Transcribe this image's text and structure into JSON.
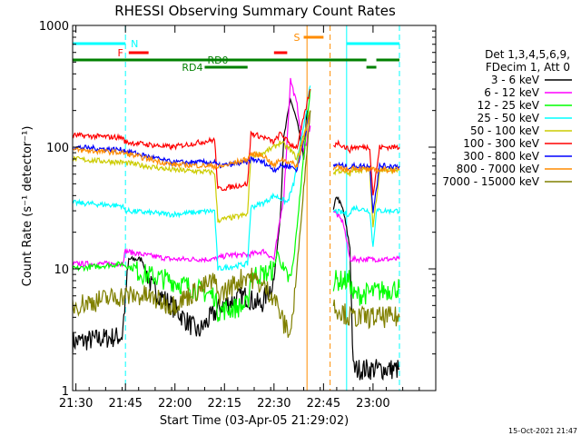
{
  "chart_data": {
    "type": "line",
    "title": "RHESSI Observing Summary Count Rates",
    "xlabel": "Start Time (03-Apr-05 21:29:02)",
    "ylabel": "Count Rate (s⁻¹ detector⁻¹)",
    "yscale": "log",
    "xlim": [
      0,
      110
    ],
    "ylim": [
      1,
      1000
    ],
    "x_ticks": [
      {
        "t": 1,
        "label": "21:30"
      },
      {
        "t": 16,
        "label": "21:45"
      },
      {
        "t": 31,
        "label": "22:00"
      },
      {
        "t": 46,
        "label": "22:15"
      },
      {
        "t": 61,
        "label": "22:30"
      },
      {
        "t": 76,
        "label": "22:45"
      },
      {
        "t": 91,
        "label": "23:00"
      }
    ],
    "y_ticks": [
      {
        "v": 1,
        "label": "1"
      },
      {
        "v": 10,
        "label": "10"
      },
      {
        "v": 100,
        "label": "100"
      },
      {
        "v": 1000,
        "label": "1000"
      }
    ],
    "legend_header": [
      "Det 1,3,4,5,6,9,",
      "FDecim 1, Att 0"
    ],
    "legend_position": "right",
    "timestamp": "15-Oct-2021 21:47",
    "series": [
      {
        "name": "3 - 6 keV",
        "color": "#000000",
        "points": [
          [
            0,
            2.5
          ],
          [
            15,
            2.8
          ],
          [
            17,
            12
          ],
          [
            21,
            12
          ],
          [
            24,
            7
          ],
          [
            30,
            5
          ],
          [
            38,
            3
          ],
          [
            45,
            5
          ],
          [
            52,
            6
          ],
          [
            57,
            5
          ],
          [
            61,
            8
          ],
          [
            63,
            30
          ],
          [
            64,
            120
          ],
          [
            66,
            250
          ],
          [
            68,
            160
          ],
          [
            70,
            80
          ],
          [
            71,
            200
          ],
          [
            74,
            null
          ],
          [
            79,
            30
          ],
          [
            80,
            40
          ],
          [
            82,
            30
          ],
          [
            84,
            15
          ],
          [
            85,
            1.5
          ],
          [
            87,
            1.5
          ],
          [
            92,
            1.5
          ],
          [
            95,
            1.5
          ],
          [
            99,
            1.5
          ]
        ]
      },
      {
        "name": "6 - 12 keV",
        "color": "#ff00ff",
        "points": [
          [
            0,
            11
          ],
          [
            15,
            11
          ],
          [
            16,
            14
          ],
          [
            22,
            13
          ],
          [
            30,
            12
          ],
          [
            43,
            12
          ],
          [
            47,
            13
          ],
          [
            53,
            13
          ],
          [
            58,
            14
          ],
          [
            61,
            12
          ],
          [
            64,
            40
          ],
          [
            66,
            360
          ],
          [
            68,
            220
          ],
          [
            70,
            90
          ],
          [
            72,
            150
          ],
          [
            74,
            null
          ],
          [
            79,
            30
          ],
          [
            80,
            28
          ],
          [
            82,
            24
          ],
          [
            84,
            12
          ],
          [
            99,
            12
          ]
        ]
      },
      {
        "name": "12 - 25 keV",
        "color": "#00ff00",
        "points": [
          [
            0,
            10
          ],
          [
            15,
            11
          ],
          [
            22,
            9
          ],
          [
            30,
            8
          ],
          [
            43,
            6
          ],
          [
            44,
            4.5
          ],
          [
            53,
            5
          ],
          [
            54,
            9
          ],
          [
            58,
            9
          ],
          [
            61,
            10
          ],
          [
            62,
            14
          ],
          [
            64,
            9
          ],
          [
            66,
            8
          ],
          [
            67,
            12
          ],
          [
            72,
            300
          ],
          [
            74,
            null
          ],
          [
            79,
            8
          ],
          [
            84,
            8
          ],
          [
            85,
            6
          ],
          [
            99,
            7
          ]
        ]
      },
      {
        "name": "25 - 50 keV",
        "color": "#00ffff",
        "points": [
          [
            0,
            35
          ],
          [
            15,
            33
          ],
          [
            16,
            30
          ],
          [
            30,
            28
          ],
          [
            43,
            30
          ],
          [
            44,
            10
          ],
          [
            53,
            11
          ],
          [
            54,
            32
          ],
          [
            58,
            35
          ],
          [
            61,
            40
          ],
          [
            63,
            38
          ],
          [
            65,
            35
          ],
          [
            67,
            50
          ],
          [
            72,
            320
          ],
          [
            74,
            null
          ],
          [
            79,
            30
          ],
          [
            84,
            28
          ],
          [
            85,
            32
          ],
          [
            90,
            30
          ],
          [
            91,
            15
          ],
          [
            92,
            30
          ],
          [
            99,
            30
          ]
        ]
      },
      {
        "name": "50 - 100 keV",
        "color": "#cccc00",
        "points": [
          [
            0,
            80
          ],
          [
            15,
            75
          ],
          [
            30,
            65
          ],
          [
            43,
            62
          ],
          [
            44,
            25
          ],
          [
            53,
            28
          ],
          [
            54,
            85
          ],
          [
            58,
            90
          ],
          [
            61,
            100
          ],
          [
            63,
            110
          ],
          [
            66,
            95
          ],
          [
            68,
            80
          ],
          [
            72,
            200
          ],
          [
            74,
            null
          ],
          [
            79,
            60
          ],
          [
            80,
            65
          ],
          [
            84,
            60
          ],
          [
            85,
            65
          ],
          [
            90,
            65
          ],
          [
            91,
            22
          ],
          [
            93,
            65
          ],
          [
            99,
            65
          ]
        ]
      },
      {
        "name": "100 - 300 keV",
        "color": "#ff0000",
        "points": [
          [
            0,
            125
          ],
          [
            15,
            120
          ],
          [
            16,
            110
          ],
          [
            30,
            100
          ],
          [
            43,
            115
          ],
          [
            44,
            45
          ],
          [
            53,
            50
          ],
          [
            54,
            130
          ],
          [
            58,
            120
          ],
          [
            61,
            110
          ],
          [
            63,
            130
          ],
          [
            66,
            105
          ],
          [
            68,
            100
          ],
          [
            72,
            300
          ],
          [
            74,
            null
          ],
          [
            79,
            100
          ],
          [
            80,
            110
          ],
          [
            84,
            95
          ],
          [
            85,
            100
          ],
          [
            90,
            100
          ],
          [
            91,
            40
          ],
          [
            93,
            100
          ],
          [
            99,
            100
          ]
        ]
      },
      {
        "name": "300 - 800 keV",
        "color": "#0000ff",
        "points": [
          [
            0,
            100
          ],
          [
            15,
            95
          ],
          [
            30,
            75
          ],
          [
            43,
            75
          ],
          [
            44,
            70
          ],
          [
            53,
            75
          ],
          [
            54,
            80
          ],
          [
            58,
            75
          ],
          [
            61,
            65
          ],
          [
            63,
            70
          ],
          [
            66,
            70
          ],
          [
            68,
            65
          ],
          [
            72,
            200
          ],
          [
            74,
            null
          ],
          [
            79,
            70
          ],
          [
            80,
            72
          ],
          [
            84,
            68
          ],
          [
            85,
            70
          ],
          [
            90,
            70
          ],
          [
            91,
            30
          ],
          [
            93,
            70
          ],
          [
            99,
            70
          ]
        ]
      },
      {
        "name": "800 - 7000 keV",
        "color": "#ff8c00",
        "points": [
          [
            0,
            95
          ],
          [
            15,
            90
          ],
          [
            30,
            72
          ],
          [
            43,
            70
          ],
          [
            44,
            68
          ],
          [
            53,
            80
          ],
          [
            54,
            88
          ],
          [
            58,
            85
          ],
          [
            61,
            70
          ],
          [
            63,
            80
          ],
          [
            66,
            75
          ],
          [
            68,
            70
          ],
          [
            72,
            200
          ],
          [
            74,
            null
          ],
          [
            79,
            65
          ],
          [
            80,
            68
          ],
          [
            84,
            65
          ],
          [
            85,
            68
          ],
          [
            90,
            65
          ],
          [
            91,
            65
          ],
          [
            99,
            65
          ]
        ]
      },
      {
        "name": "7000 - 15000 keV",
        "color": "#808000",
        "points": [
          [
            0,
            5
          ],
          [
            15,
            6
          ],
          [
            22,
            6
          ],
          [
            30,
            5
          ],
          [
            43,
            8
          ],
          [
            44,
            6
          ],
          [
            53,
            9
          ],
          [
            58,
            7
          ],
          [
            61,
            6
          ],
          [
            62,
            5
          ],
          [
            64,
            3.5
          ],
          [
            66,
            3
          ],
          [
            67,
            5
          ],
          [
            72,
            200
          ],
          [
            74,
            null
          ],
          [
            79,
            5
          ],
          [
            84,
            4
          ],
          [
            85,
            4
          ],
          [
            99,
            4
          ]
        ]
      }
    ],
    "annotations": [
      {
        "label": "N",
        "color": "#00ffff",
        "segments": [
          [
            0,
            16
          ],
          [
            83,
            99
          ]
        ]
      },
      {
        "label": "F",
        "color": "#ff0000",
        "segments": [
          [
            17,
            23
          ],
          [
            61,
            65
          ]
        ]
      },
      {
        "label": "S",
        "color": "#ff8c00",
        "segments": [
          [
            70,
            76
          ]
        ]
      },
      {
        "label": "RD0",
        "color": "#008000",
        "segments": [
          [
            0,
            89
          ],
          [
            92,
            99
          ]
        ]
      },
      {
        "label": "RD4",
        "color": "#008000",
        "segments": [
          [
            40,
            53
          ],
          [
            89,
            92
          ]
        ]
      }
    ],
    "vlines": [
      {
        "t": 0,
        "color": "#00ffff",
        "style": "solid"
      },
      {
        "t": 16,
        "color": "#00ffff",
        "style": "dashed"
      },
      {
        "t": 71,
        "color": "#ff8c00",
        "style": "solid"
      },
      {
        "t": 78,
        "color": "#ff8c00",
        "style": "dashed"
      },
      {
        "t": 83,
        "color": "#00ffff",
        "style": "solid"
      },
      {
        "t": 99,
        "color": "#00ffff",
        "style": "dashed"
      }
    ]
  }
}
